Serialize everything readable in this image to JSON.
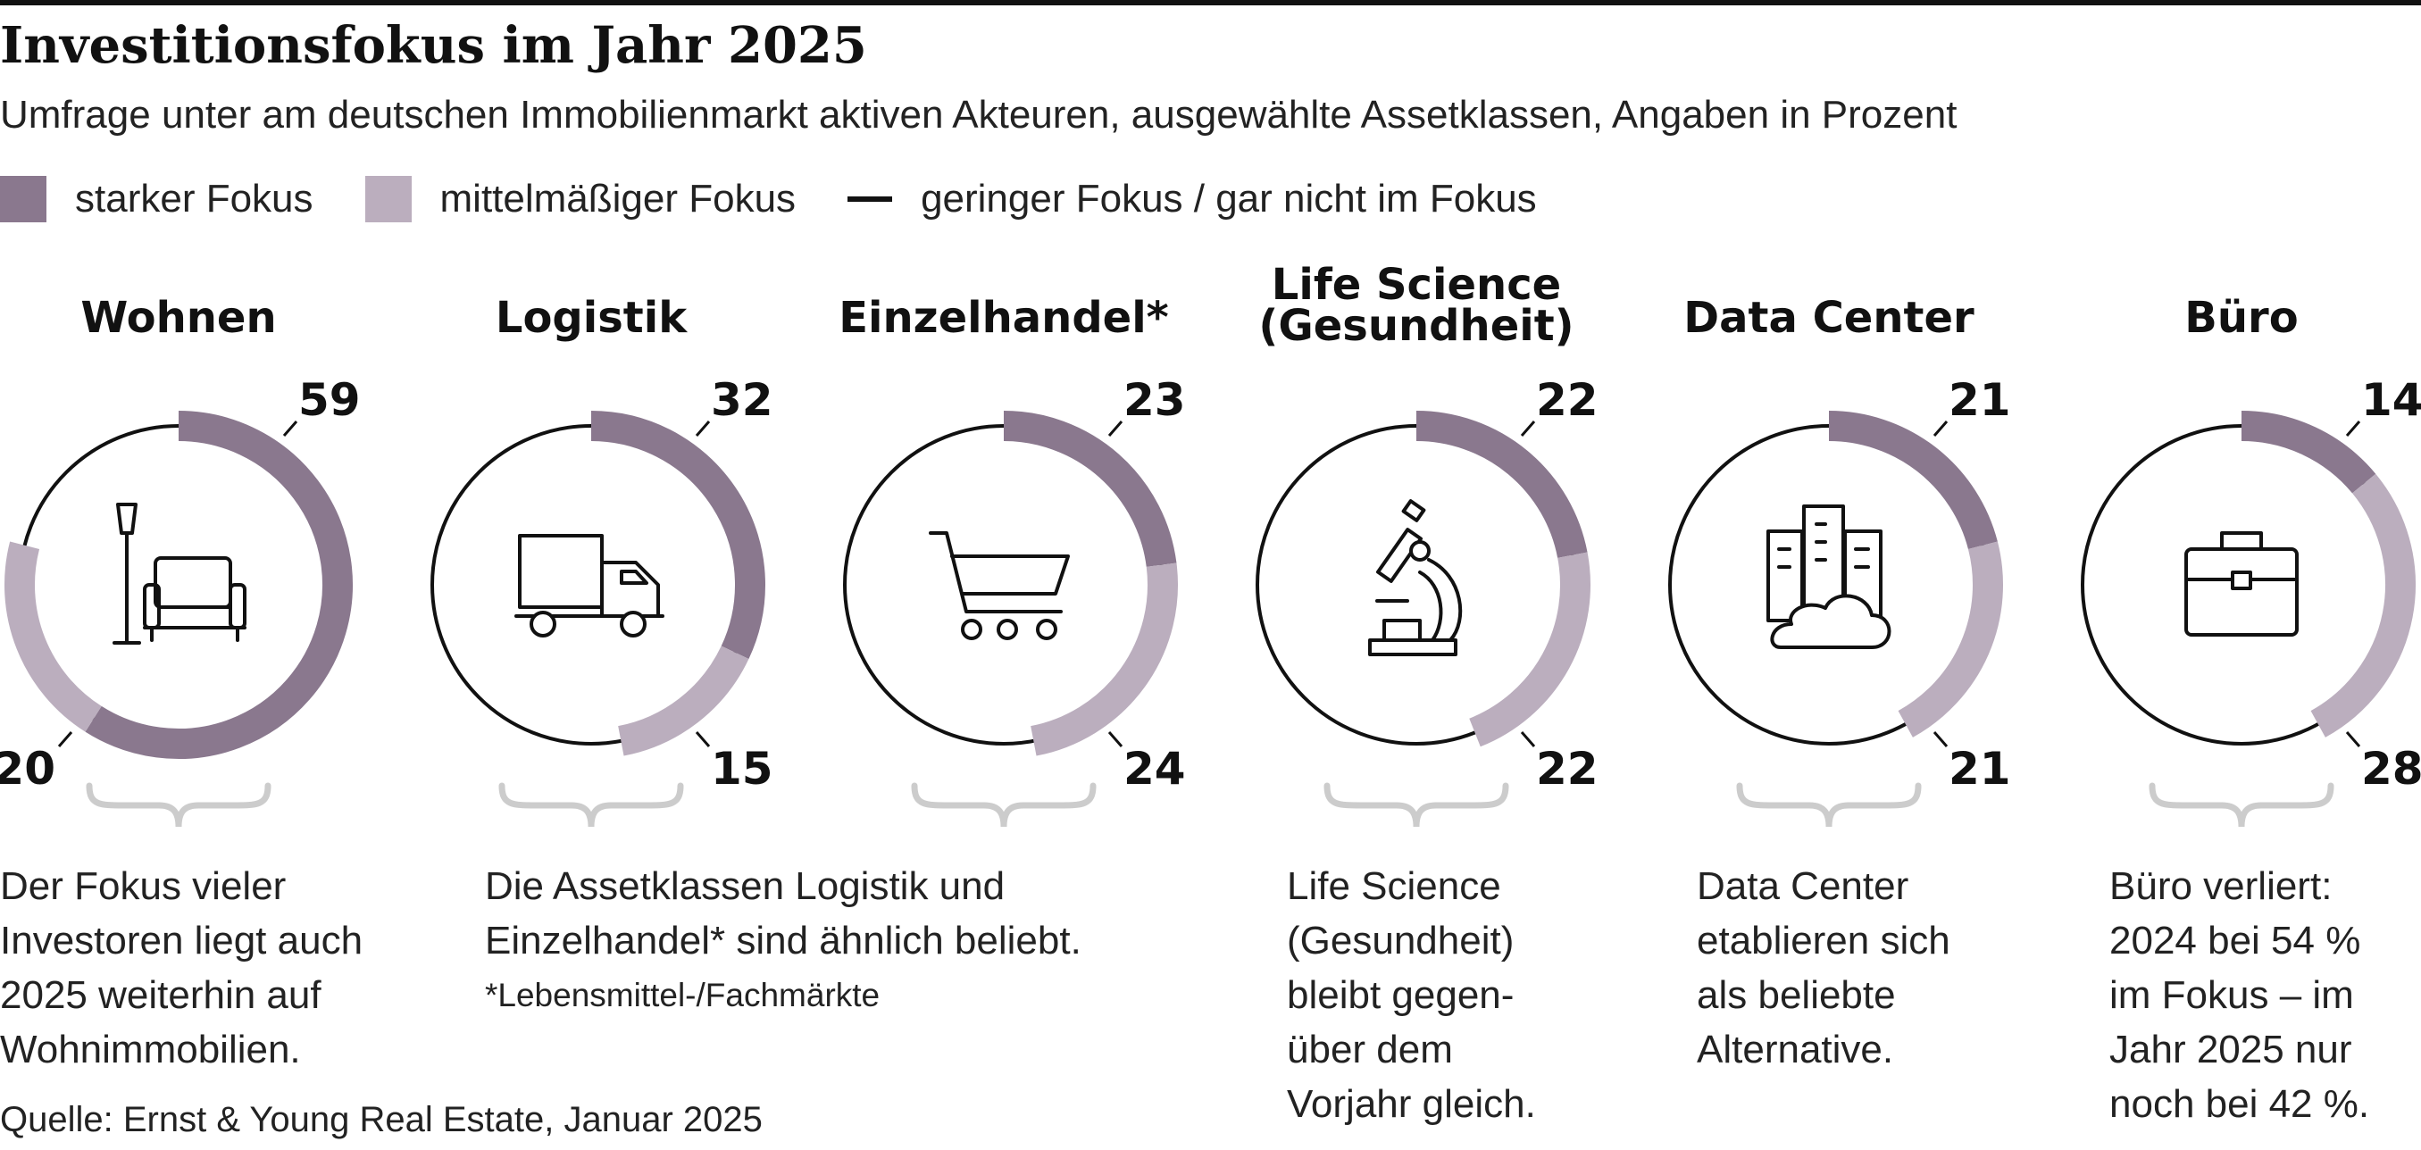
{
  "header": {
    "title": "Investitionsfokus im Jahr 2025",
    "subtitle": "Umfrage unter am deutschen Immobilienmarkt aktiven Akteuren, ausgewählte Assetklassen, Angaben in Prozent"
  },
  "legend": {
    "strong": "starker Fokus",
    "medium": "mittelmäßiger Fokus",
    "low": "geringer Fokus / gar nicht im Fokus"
  },
  "colors": {
    "strong": "#8a788e",
    "medium": "#bbaebe",
    "ring": "#111111",
    "brace": "#cccccc"
  },
  "chart_data": {
    "type": "donut",
    "series": [
      {
        "key": "strong",
        "name": "starker Fokus"
      },
      {
        "key": "medium",
        "name": "mittelmäßiger Fokus"
      }
    ],
    "categories": [
      {
        "title": [
          "Wohnen"
        ],
        "strong": 59,
        "medium": 20,
        "icon": "sofa-lamp-icon"
      },
      {
        "title": [
          "Logistik"
        ],
        "strong": 32,
        "medium": 15,
        "icon": "truck-icon"
      },
      {
        "title": [
          "Einzelhandel*"
        ],
        "strong": 23,
        "medium": 24,
        "icon": "shopping-cart-icon"
      },
      {
        "title": [
          "Life Science",
          "(Gesundheit)"
        ],
        "strong": 22,
        "medium": 22,
        "icon": "microscope-icon"
      },
      {
        "title": [
          "Data Center"
        ],
        "strong": 21,
        "medium": 21,
        "icon": "data-center-cloud-icon"
      },
      {
        "title": [
          "Büro"
        ],
        "strong": 14,
        "medium": 28,
        "icon": "briefcase-icon"
      }
    ]
  },
  "notes": {
    "wohnen": [
      "Der Fokus vieler",
      "Investoren liegt auch",
      "2025 weiterhin auf",
      "Wohnimmobilien."
    ],
    "logistik_einzelhandel": [
      "Die Assetklassen Logistik und",
      "Einzelhandel* sind ähnlich beliebt."
    ],
    "footnote": "*Lebensmittel-/Fachmärkte",
    "life_science": [
      "Life Science",
      "(Gesundheit)",
      "bleibt gegen-",
      "über dem",
      "Vorjahr gleich."
    ],
    "data_center": [
      "Data Center",
      "etablieren sich",
      "als beliebte",
      "Alternative."
    ],
    "buero": [
      "Büro verliert:",
      "2024 bei 54 %",
      "im Fokus – im",
      "Jahr 2025 nur",
      "noch bei 42 %."
    ]
  },
  "source": "Quelle: Ernst & Young Real Estate, Januar 2025"
}
